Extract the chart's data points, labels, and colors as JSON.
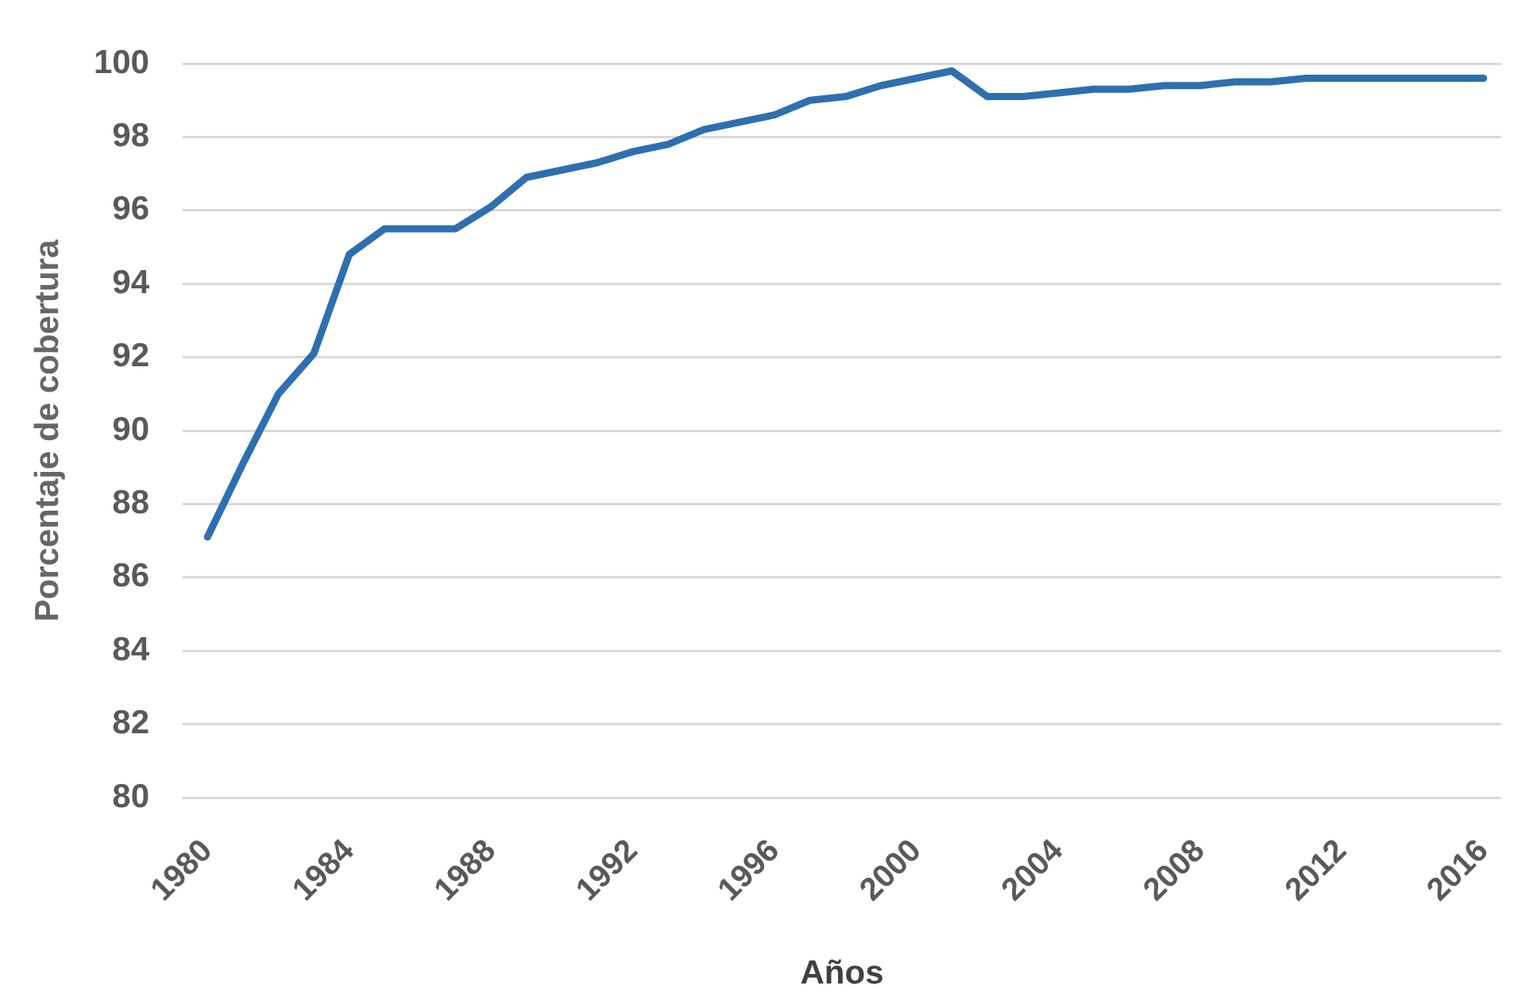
{
  "chart_data": {
    "type": "line",
    "xlabel": "Años",
    "ylabel": "Porcentaje de cobertura",
    "x": [
      1980,
      1981,
      1982,
      1983,
      1984,
      1985,
      1986,
      1987,
      1988,
      1989,
      1990,
      1991,
      1992,
      1993,
      1994,
      1995,
      1996,
      1997,
      1998,
      1999,
      2000,
      2001,
      2002,
      2003,
      2004,
      2005,
      2006,
      2007,
      2008,
      2009,
      2010,
      2011,
      2012,
      2013,
      2014,
      2015,
      2016
    ],
    "series": [
      {
        "color": "#2e6fb0",
        "values": [
          87.1,
          89.1,
          91.0,
          92.1,
          94.8,
          95.5,
          95.5,
          95.5,
          96.1,
          96.9,
          97.1,
          97.3,
          97.6,
          97.8,
          98.2,
          98.4,
          98.6,
          99.0,
          99.1,
          99.4,
          99.6,
          99.8,
          99.1,
          99.1,
          99.2,
          99.3,
          99.3,
          99.4,
          99.4,
          99.5,
          99.5,
          99.6,
          99.6,
          99.6,
          99.6,
          99.6,
          99.6
        ]
      }
    ],
    "xlim": [
      1979.3,
      2016.5
    ],
    "xticks": [
      1980,
      1984,
      1988,
      1992,
      1996,
      2000,
      2004,
      2008,
      2012,
      2016
    ],
    "ylim": [
      80,
      100
    ],
    "yticks": [
      80,
      82,
      84,
      86,
      88,
      90,
      92,
      94,
      96,
      98,
      100
    ],
    "grid": "y",
    "marker": "none"
  }
}
